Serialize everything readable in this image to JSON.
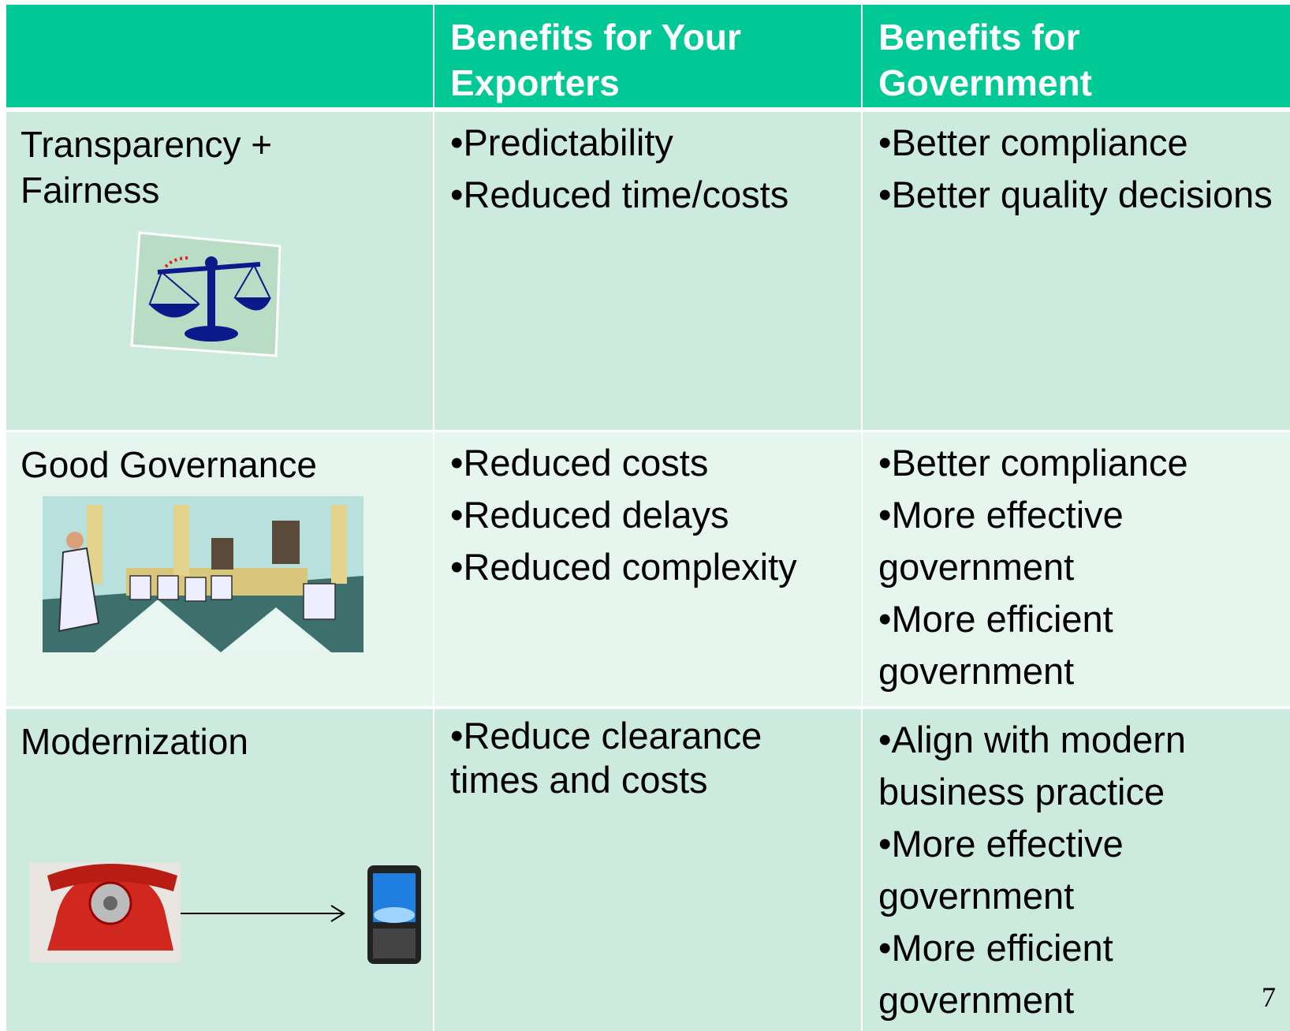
{
  "table": {
    "header": [
      "Benefits for Your Exporters",
      "Benefits for Government"
    ],
    "rows": [
      {
        "label": "Transparency + Fairness",
        "exporters": [
          "•Predictability",
          "•Reduced time/costs"
        ],
        "government": [
          "•Better compliance",
          "•Better quality decisions"
        ]
      },
      {
        "label": "Good Governance",
        "exporters": [
          "•Reduced costs",
          "•Reduced delays",
          "•Reduced complexity"
        ],
        "government": [
          "•Better compliance",
          "•More effective government",
          "•More efficient government"
        ]
      },
      {
        "label": "Modernization",
        "exporters": [
          "•Reduce clearance times and costs"
        ],
        "government": [
          "•Align with modern business practice",
          "•More effective government",
          "•More efficient government"
        ]
      }
    ]
  },
  "page_number": 7
}
